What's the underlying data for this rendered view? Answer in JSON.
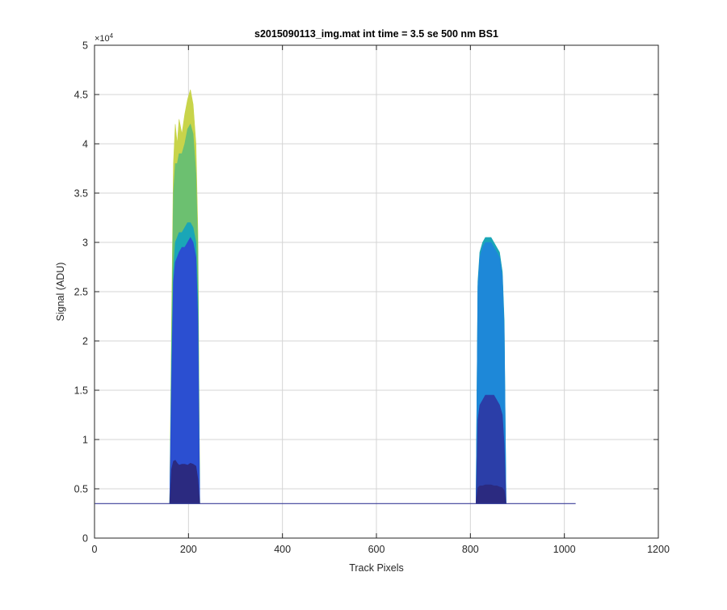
{
  "chart_data": {
    "type": "area",
    "title": "s2015090113_img.mat int time = 3.5 se  500 nm BS1",
    "xlabel": "Track Pixels",
    "ylabel": "Signal (ADU)",
    "xlim": [
      0,
      1200
    ],
    "ylim": [
      0,
      50000
    ],
    "x_ticks": [
      0,
      200,
      400,
      600,
      800,
      1000,
      1200
    ],
    "x_tick_labels": [
      "0",
      "200",
      "400",
      "600",
      "800",
      "1000",
      "1200"
    ],
    "y_ticks": [
      0,
      5000,
      10000,
      15000,
      20000,
      25000,
      30000,
      35000,
      40000,
      45000,
      50000
    ],
    "y_tick_labels": [
      "0",
      "0.5",
      "1",
      "1.5",
      "2",
      "2.5",
      "3",
      "3.5",
      "4",
      "4.5",
      "5"
    ],
    "y_exponent_label": "×10",
    "y_exponent_power": "4",
    "grid": true,
    "baseline": 3500,
    "x_range": [
      1,
      1024
    ],
    "series": [
      {
        "color": "#c8d44a",
        "x": [
          160,
          164,
          168,
          172,
          176,
          180,
          186,
          192,
          198,
          204,
          210,
          216,
          220,
          224
        ],
        "y": [
          3500,
          22000,
          38000,
          42000,
          40000,
          42500,
          41000,
          43000,
          44500,
          45500,
          44000,
          40000,
          31000,
          3500
        ]
      },
      {
        "color": "#6cc070",
        "x": [
          160,
          164,
          168,
          172,
          176,
          180,
          186,
          192,
          198,
          204,
          210,
          216,
          220,
          224
        ],
        "y": [
          3500,
          20000,
          35000,
          38000,
          38000,
          39000,
          39000,
          40000,
          41500,
          42000,
          41000,
          37000,
          29000,
          3500
        ]
      },
      {
        "color": "#1aa6b7",
        "x": [
          160,
          164,
          168,
          172,
          176,
          180,
          186,
          192,
          198,
          204,
          210,
          216,
          220,
          224,
          812,
          816,
          820,
          826,
          832,
          838,
          844,
          850,
          856,
          862,
          868,
          872,
          876
        ],
        "y": [
          3500,
          18000,
          27000,
          30000,
          30500,
          31000,
          31000,
          31500,
          32000,
          32000,
          31500,
          30000,
          24000,
          3500,
          3500,
          26000,
          29000,
          30000,
          30500,
          30500,
          30500,
          30000,
          29500,
          29000,
          27000,
          22000,
          3500
        ]
      },
      {
        "color": "#1e88d8",
        "x": [
          812,
          816,
          820,
          826,
          832,
          838,
          844,
          850,
          856,
          862,
          868,
          872,
          876
        ],
        "y": [
          3500,
          25500,
          28500,
          29500,
          30000,
          30000,
          30000,
          29500,
          29000,
          28500,
          26500,
          21000,
          3500
        ]
      },
      {
        "color": "#2b4fd1",
        "x": [
          160,
          164,
          168,
          172,
          176,
          180,
          186,
          192,
          198,
          204,
          210,
          216,
          220,
          224
        ],
        "y": [
          3500,
          16000,
          26000,
          28000,
          28500,
          29000,
          29500,
          29500,
          30000,
          30500,
          30000,
          28500,
          22000,
          3500
        ]
      },
      {
        "color": "#2b3ea8",
        "x": [
          812,
          816,
          820,
          826,
          832,
          838,
          844,
          850,
          856,
          862,
          868,
          872,
          876
        ],
        "y": [
          3500,
          12000,
          13500,
          14000,
          14500,
          14500,
          14500,
          14500,
          14000,
          13500,
          12500,
          9500,
          3500
        ]
      },
      {
        "color": "#2b2a80",
        "x": [
          160,
          164,
          168,
          172,
          176,
          180,
          186,
          192,
          198,
          204,
          210,
          216,
          220,
          224,
          812,
          816,
          820,
          826,
          832,
          838,
          844,
          850,
          856,
          862,
          868,
          872,
          876
        ],
        "y": [
          3500,
          7000,
          7800,
          7900,
          7600,
          7400,
          7500,
          7500,
          7400,
          7600,
          7500,
          7300,
          6000,
          3500,
          3500,
          5100,
          5300,
          5300,
          5400,
          5400,
          5400,
          5300,
          5300,
          5200,
          5100,
          4800,
          3500
        ]
      }
    ]
  }
}
